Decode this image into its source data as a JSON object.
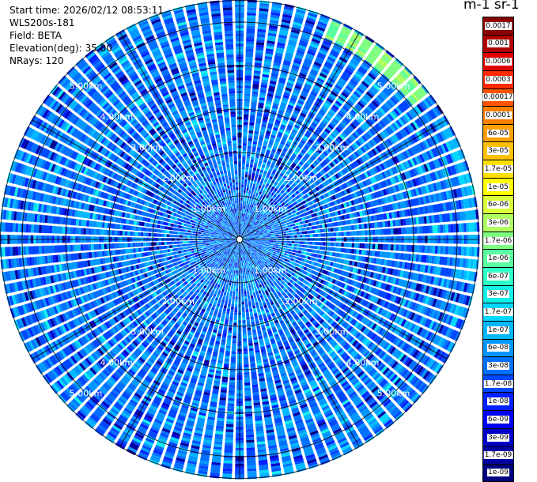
{
  "header": {
    "start_time_line": "Start time: 2026/02/12 08:53:11",
    "instrument": "WLS200s-181",
    "field_line": "Field: BETA",
    "elevation_line": "Elevation(deg): 35.00",
    "nrays_line": "NRays: 120"
  },
  "colorbar": {
    "unit_title": "m-1 sr-1",
    "labels": [
      "0.0017",
      "0.001",
      "0.0006",
      "0.0003",
      "0.00017",
      "0.0001",
      "6e-05",
      "3e-05",
      "1.7e-05",
      "1e-05",
      "6e-06",
      "3e-06",
      "1.7e-06",
      "1e-06",
      "6e-07",
      "3e-07",
      "1.7e-07",
      "1e-07",
      "6e-08",
      "3e-08",
      "1.7e-08",
      "1e-08",
      "6e-09",
      "3e-09",
      "1.7e-09",
      "1e-09"
    ],
    "colors": [
      "#8b0000",
      "#b00000",
      "#e00000",
      "#ff2a00",
      "#ff5500",
      "#ff8000",
      "#ffa000",
      "#ffc000",
      "#ffe000",
      "#ffff00",
      "#d8ff3a",
      "#b0ff60",
      "#80ff80",
      "#5affa0",
      "#30ffc8",
      "#10f0e8",
      "#00d8ff",
      "#00b8ff",
      "#0098ff",
      "#0070ff",
      "#0048ff",
      "#0020ff",
      "#0000f0",
      "#0000c8",
      "#0000a0",
      "#000080"
    ]
  },
  "chart_data": {
    "type": "heatmap",
    "projection": "polar-ppi",
    "field": "BETA",
    "elevation_deg": 35.0,
    "n_rays": 120,
    "range_rings": [
      {
        "range_km": 1.0,
        "label": "1.00km"
      },
      {
        "range_km": 2.0,
        "label": "2.00km"
      },
      {
        "range_km": 3.0,
        "label": "3.00km"
      },
      {
        "range_km": 4.0,
        "label": "4.00km"
      },
      {
        "range_km": 5.0,
        "label": "5.00km"
      }
    ],
    "max_range_km": 5.5,
    "background_value": "3e-08",
    "color_scale": "log",
    "value_range": [
      "1e-09",
      "0.0017"
    ],
    "features": [
      {
        "name": "enhanced-arc-northeast",
        "azimuth_deg": [
          22,
          52
        ],
        "range_km": [
          5.0,
          5.4
        ],
        "value": "1.7e-06"
      },
      {
        "name": "enhanced-arc-east",
        "azimuth_deg": [
          60,
          100
        ],
        "range_km": [
          5.2,
          5.4
        ],
        "value": "1e-07"
      }
    ]
  }
}
